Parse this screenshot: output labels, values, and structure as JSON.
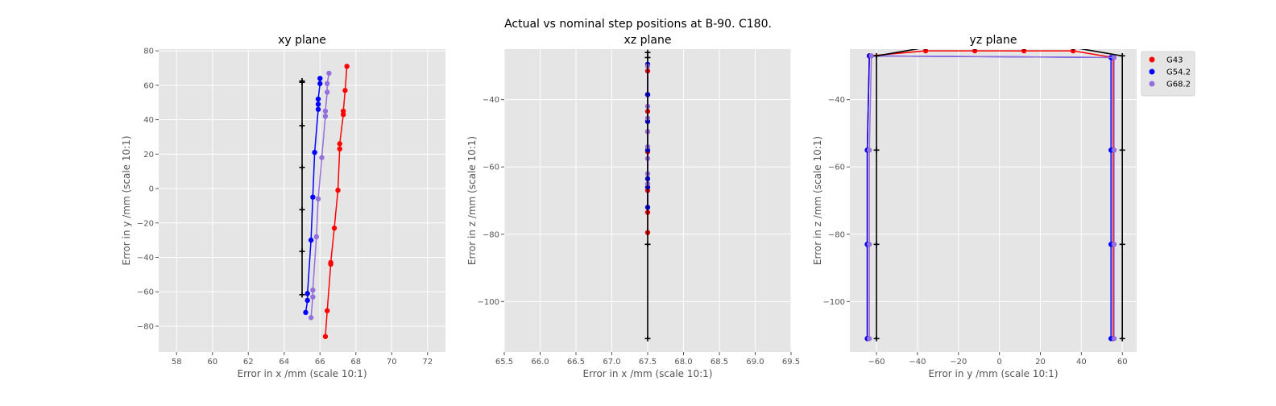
{
  "suptitle": "Actual vs nominal step positions at B-90. C180.",
  "colors": {
    "G43": "#ff0000",
    "G54.2": "#0000ff",
    "G68.2": "#9370db",
    "nominal": "#000000",
    "axes_bg": "#e5e5e5",
    "grid": "#ffffff"
  },
  "legend": {
    "placement": "right-outside-top",
    "entries": [
      "G43",
      "G54.2",
      "G68.2"
    ]
  },
  "chart_data": [
    {
      "type": "line",
      "title": "xy plane",
      "xlabel": "Error in x /mm (scale 10:1)",
      "ylabel": "Error in y /mm (scale 10:1)",
      "xlim": [
        57,
        73
      ],
      "ylim": [
        -95,
        81
      ],
      "xticks": [
        58,
        60,
        62,
        64,
        66,
        68,
        70,
        72
      ],
      "yticks": [
        -80,
        -60,
        -40,
        -20,
        0,
        20,
        40,
        60,
        80
      ],
      "grid": true,
      "nominal": {
        "x": [
          65,
          65,
          65,
          65,
          65,
          65,
          65
        ],
        "y": [
          -61.7,
          -36.5,
          -12.3,
          12.3,
          36.5,
          61.7,
          62.5
        ]
      },
      "series": [
        {
          "name": "G43",
          "x": [
            66.3,
            66.4,
            66.6,
            66.6,
            66.8,
            67.0,
            67.1,
            67.1,
            67.3,
            67.3,
            67.4,
            67.5
          ],
          "y": [
            -86,
            -71,
            -44,
            -43,
            -23,
            -1,
            23,
            26,
            43,
            45,
            57,
            71
          ]
        },
        {
          "name": "G54.2",
          "x": [
            65.2,
            65.3,
            65.3,
            65.5,
            65.6,
            65.7,
            65.9,
            65.9,
            65.9,
            66.0,
            66.0
          ],
          "y": [
            -72,
            -65,
            -61,
            -30,
            -5,
            21,
            46,
            49,
            52,
            61,
            64
          ]
        },
        {
          "name": "G68.2",
          "x": [
            65.5,
            65.6,
            65.6,
            65.8,
            65.9,
            66.1,
            66.3,
            66.3,
            66.4,
            66.4,
            66.5
          ],
          "y": [
            -75,
            -63,
            -59,
            -28,
            -6,
            18,
            42,
            45,
            56,
            61,
            67
          ]
        }
      ]
    },
    {
      "type": "line",
      "title": "xz plane",
      "xlabel": "Error in x /mm (scale 10:1)",
      "ylabel": "Error in z /mm (scale 10:1)",
      "xlim": [
        65.5,
        69.5
      ],
      "ylim": [
        -115,
        -25
      ],
      "xticks": [
        65.5,
        66.0,
        66.5,
        67.0,
        67.5,
        68.0,
        68.5,
        69.0,
        69.5
      ],
      "xticklabels": [
        "65.5",
        "66.0",
        "66.5",
        "67.0",
        "67.5",
        "68.0",
        "68.5",
        "69.0",
        "69.5"
      ],
      "yticks": [
        -100,
        -80,
        -60,
        -40
      ],
      "grid": true,
      "nominal": {
        "x": [
          67.5,
          67.5,
          67.5,
          67.5
        ],
        "y": [
          -111,
          -83,
          -27.5,
          -26
        ]
      },
      "series": [
        {
          "name": "G43",
          "x": [
            67.5,
            67.5,
            67.5,
            67.5,
            67.5,
            67.5,
            67.5,
            67.5
          ],
          "y": [
            -79.5,
            -73.5,
            -67,
            -55.5,
            -49.5,
            -43.5,
            -38.5,
            -31.5
          ]
        },
        {
          "name": "G54.2",
          "x": [
            67.5,
            67.5,
            67.5,
            67.5,
            67.5,
            67.5,
            67.5,
            67.5
          ],
          "y": [
            -72,
            -66,
            -63.5,
            -55,
            -46.5,
            -38.5,
            -38.5,
            -29.5
          ]
        },
        {
          "name": "G68.2",
          "x": [
            67.5,
            67.5,
            67.5,
            67.5,
            67.5,
            67.5,
            67.5,
            67.5
          ],
          "y": [
            -65,
            -62,
            -57.5,
            -54,
            -49.5,
            -45.5,
            -42,
            -30
          ]
        }
      ]
    },
    {
      "type": "line",
      "title": "yz plane",
      "xlabel": "Error in y /mm (scale 10:1)",
      "ylabel": "Error in z /mm (scale 10:1)",
      "xlim": [
        -73,
        67
      ],
      "ylim": [
        -115,
        -25
      ],
      "xticks": [
        -60,
        -40,
        -20,
        0,
        20,
        40,
        60
      ],
      "yticks": [
        -100,
        -80,
        -60,
        -40
      ],
      "grid": true,
      "nominal": {
        "x": [
          -60,
          -60,
          -60,
          -60,
          -36,
          -12,
          12,
          36,
          60,
          60,
          60,
          60
        ],
        "y": [
          -111,
          -83,
          -55,
          -27,
          -24.5,
          -24.5,
          -24.5,
          -24.5,
          -27,
          -55,
          -83,
          -111
        ]
      },
      "series": [
        {
          "name": "G43",
          "x": [
            -64.5,
            -64.5,
            -64.5,
            -63.5,
            -36,
            -12,
            12,
            36,
            55.5,
            55.5,
            55.5,
            55.5
          ],
          "y": [
            -111,
            -83,
            -55,
            -27,
            -25.5,
            -25.5,
            -25.5,
            -25.5,
            -27.5,
            -55,
            -83,
            -111
          ]
        },
        {
          "name": "G54.2",
          "x": [
            -64.5,
            -64.5,
            -64.5,
            -63.5,
            54.5,
            54.5,
            54.5,
            54.5
          ],
          "y": [
            -111,
            -83,
            -55,
            -27,
            -27.5,
            -55,
            -83,
            -111
          ]
        },
        {
          "name": "G68.2",
          "x": [
            -63.5,
            -63.5,
            -63.5,
            -62.5,
            56,
            56,
            56,
            56
          ],
          "y": [
            -111,
            -83,
            -55,
            -27,
            -27.5,
            -55,
            -83,
            -111
          ]
        }
      ]
    }
  ]
}
